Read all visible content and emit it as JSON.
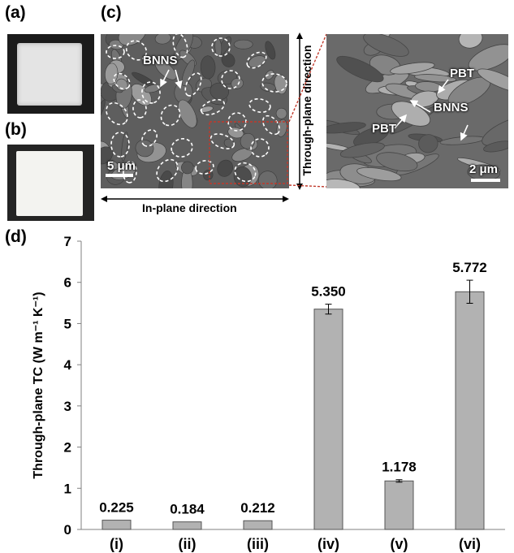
{
  "panels": {
    "a": "(a)",
    "b": "(b)",
    "c": "(c)",
    "d": "(d)"
  },
  "sem": {
    "left_label_bnns": "BNNS",
    "left_scale": "5 μm",
    "right_label_pbt_top": "PBT",
    "right_label_pbt_left": "PBT",
    "right_label_bnns": "BNNS",
    "right_scale": "2 μm",
    "in_plane_direction": "In-plane direction",
    "through_plane_direction": "Through-plane direction"
  },
  "colors": {
    "bar_fill": "#b2b2b2",
    "bar_stroke": "#555555",
    "zoom_box": "#c0392b",
    "sem_dark": "#4a4a4a",
    "sem_light": "#9a9a9a"
  },
  "chart_data": {
    "type": "bar",
    "categories": [
      "(i)",
      "(ii)",
      "(iii)",
      "(iv)",
      "(v)",
      "(vi)"
    ],
    "values": [
      0.225,
      0.184,
      0.212,
      5.35,
      1.178,
      5.772
    ],
    "value_labels": [
      "0.225",
      "0.184",
      "0.212",
      "5.350",
      "1.178",
      "5.772"
    ],
    "errors": [
      0,
      0,
      0,
      0.12,
      0.03,
      0.28
    ],
    "ylabel": "Through-plane TC (W m⁻¹ K⁻¹)",
    "xlabel": "",
    "title": "",
    "ylim": [
      0,
      7
    ],
    "yticks": [
      0,
      1,
      2,
      3,
      4,
      5,
      6,
      7
    ],
    "grid": false
  }
}
